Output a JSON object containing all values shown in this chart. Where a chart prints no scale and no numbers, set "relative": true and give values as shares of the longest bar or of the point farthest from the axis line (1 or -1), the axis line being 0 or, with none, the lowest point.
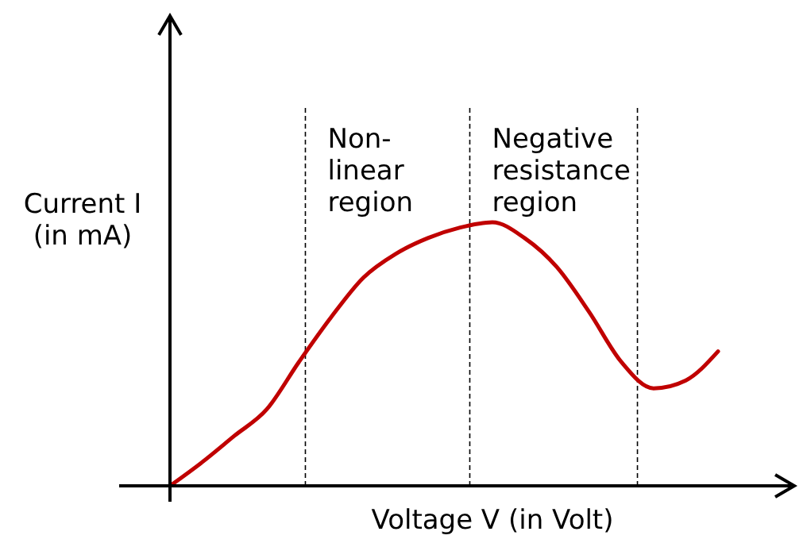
{
  "chart_data": {
    "type": "line",
    "relative": true,
    "xlabel": "Voltage V (in Volt)",
    "ylabel": "Current I\n(in mA)",
    "categories": [
      null,
      null,
      null,
      null,
      null,
      null,
      null,
      null,
      null,
      null,
      null,
      null,
      null,
      null,
      null,
      null,
      null,
      null
    ],
    "series": [
      {
        "color": "#c00000",
        "values": [
          0,
          0.09,
          0.19,
          0.29,
          0.47,
          0.64,
          0.79,
          0.88,
          0.94,
          0.98,
          1,
          0.94,
          0.83,
          0.66,
          0.47,
          0.37,
          0.4,
          0.51
        ]
      }
    ],
    "annotations": [
      "Non-\nlinear\nregion",
      "Negative\nresistance\nregion"
    ],
    "marker": "none",
    "line_style": "solid"
  }
}
